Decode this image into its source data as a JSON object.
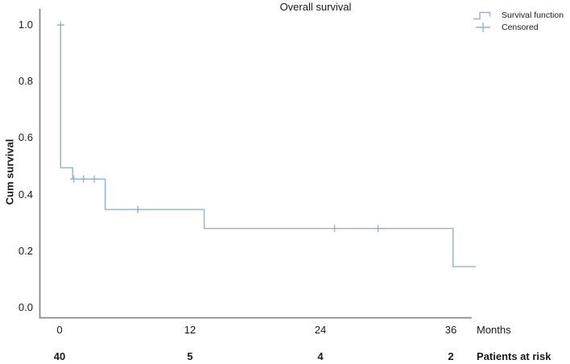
{
  "title": "Overall survival",
  "legend": {
    "items": [
      {
        "label": "Survival function",
        "icon": "step-line-icon"
      },
      {
        "label": "Censored",
        "icon": "plus-icon"
      }
    ]
  },
  "axes": {
    "y_label": "Cum survival",
    "x_unit_label": "Months",
    "y_tick_labels": [
      "1.0",
      "0.8",
      "0.6",
      "0.4",
      "0.2",
      "0.0"
    ],
    "x_tick_labels": [
      "0",
      "12",
      "24",
      "36"
    ]
  },
  "at_risk": {
    "label": "Patients at risk",
    "counts": [
      "40",
      "5",
      "4",
      "2"
    ]
  },
  "colors": {
    "curve": "#8fb2d5",
    "axis": "#8a8a8a",
    "text": "#1a1a1a"
  },
  "chart_data": {
    "type": "line",
    "subtype": "kaplan-meier-step",
    "title": "Overall survival",
    "xlabel": "Months",
    "ylabel": "Cum survival",
    "xlim": [
      0,
      38.5
    ],
    "ylim": [
      0.0,
      1.0
    ],
    "x_ticks": [
      0,
      12,
      24,
      36
    ],
    "y_ticks": [
      1.0,
      0.8,
      0.6,
      0.4,
      0.2,
      0.0
    ],
    "grid": false,
    "legend_entries": [
      "Survival function",
      "Censored"
    ],
    "legend_position": "top-right",
    "series": [
      {
        "name": "Survival function",
        "step_vertices_month_survival": [
          [
            0.1,
            1.0
          ],
          [
            0.1,
            0.495
          ],
          [
            1.2,
            0.495
          ],
          [
            1.2,
            0.455
          ],
          [
            4.2,
            0.455
          ],
          [
            4.2,
            0.347
          ],
          [
            13.3,
            0.347
          ],
          [
            13.3,
            0.28
          ],
          [
            36.2,
            0.28
          ],
          [
            36.2,
            0.145
          ],
          [
            38.3,
            0.145
          ]
        ]
      }
    ],
    "censored_points_month_survival": [
      [
        0.1,
        1.0
      ],
      [
        1.3,
        0.455
      ],
      [
        2.2,
        0.455
      ],
      [
        3.2,
        0.455
      ],
      [
        7.2,
        0.347
      ],
      [
        25.3,
        0.28
      ],
      [
        29.3,
        0.28
      ]
    ],
    "patients_at_risk": {
      "months": [
        0,
        12,
        24,
        36
      ],
      "counts": [
        40,
        5,
        4,
        2
      ]
    }
  }
}
